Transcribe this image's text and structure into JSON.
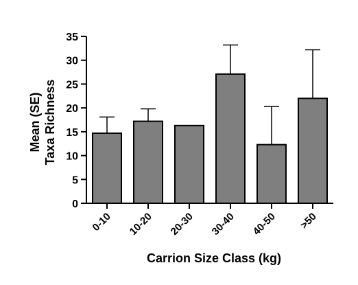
{
  "chart_data": {
    "type": "bar",
    "categories": [
      "0-10",
      "10-20",
      "20-30",
      "30-40",
      "40-50",
      ">50"
    ],
    "values": [
      14.7,
      17.2,
      16.3,
      27.1,
      12.3,
      22.0
    ],
    "errors": [
      3.4,
      2.6,
      0,
      6.1,
      8.0,
      10.2
    ],
    "xlabel": "Carrion Size Class (kg)",
    "ylabel": [
      "Mean (SE)",
      "Taxa Richness"
    ],
    "ylim": [
      0,
      35
    ],
    "yticks": [
      0,
      5,
      10,
      15,
      20,
      25,
      30,
      35
    ],
    "grid": false,
    "colors": {
      "bar_fill": "#7f7f7f",
      "bar_stroke": "#000000",
      "axis": "#000000"
    }
  }
}
